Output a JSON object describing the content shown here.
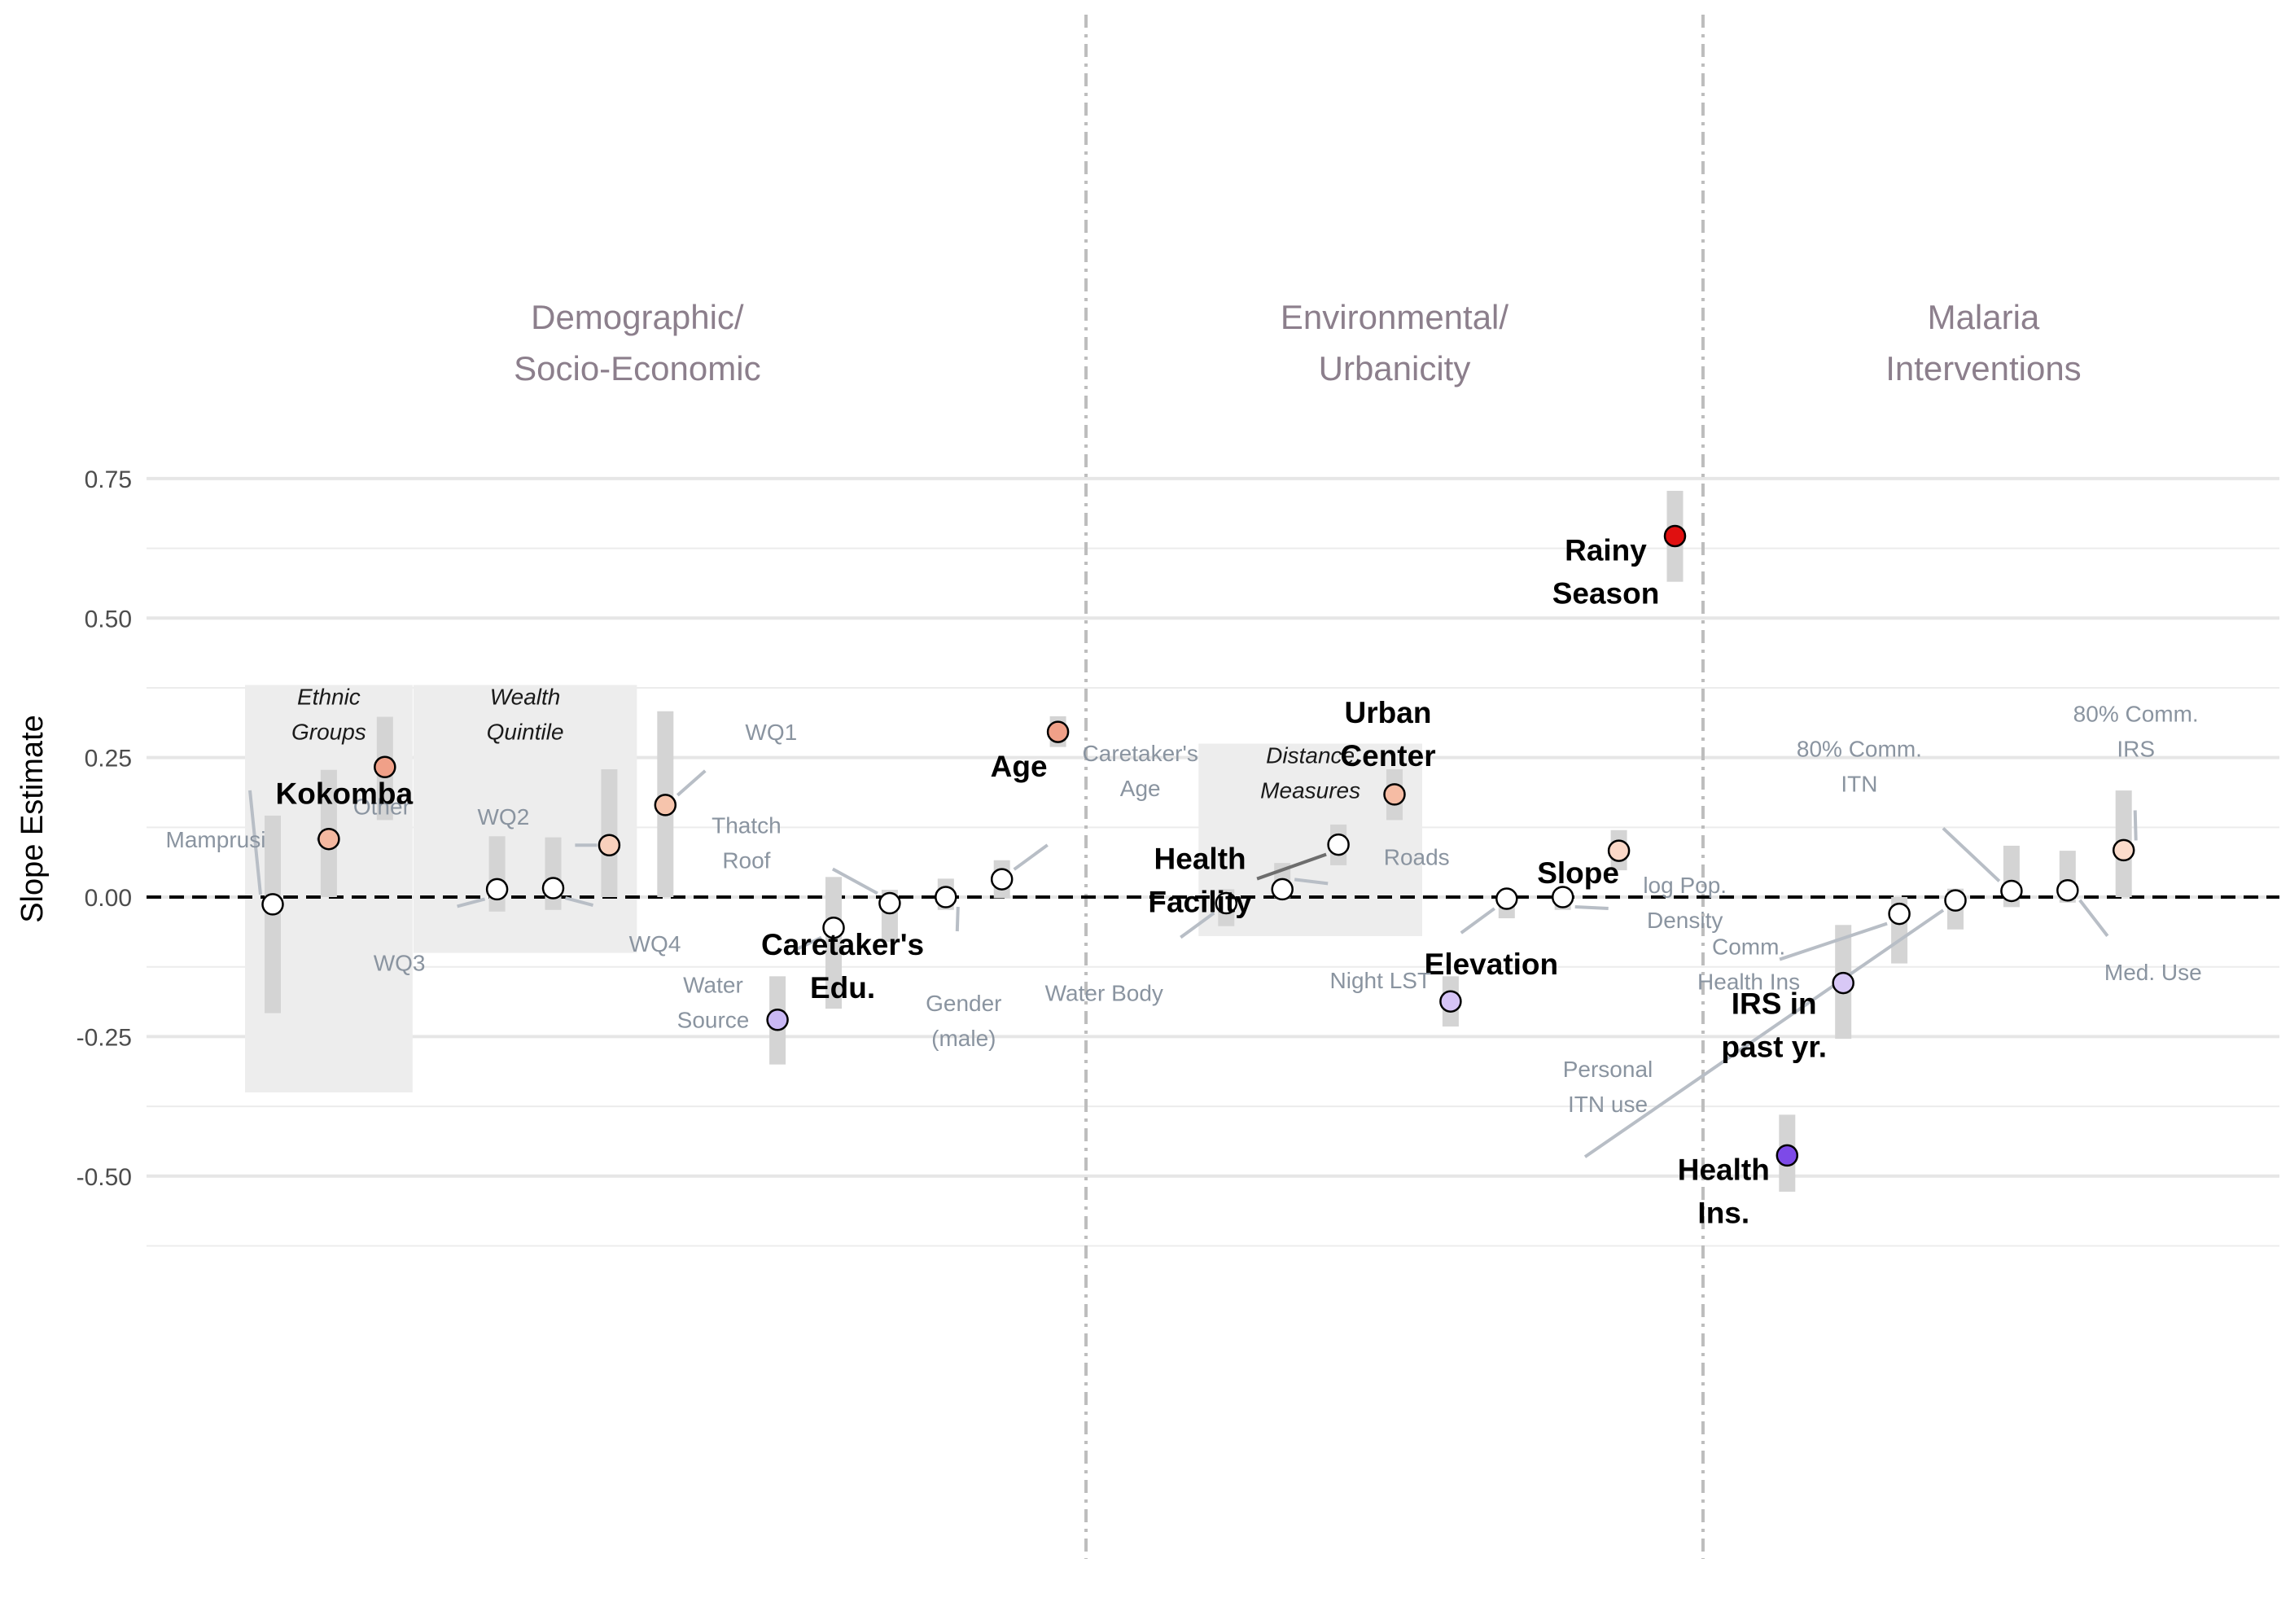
{
  "chart_data": {
    "type": "scatter",
    "title": "",
    "xlabel": "",
    "ylabel": "Slope Estimate",
    "ylim": [
      -0.57,
      0.79
    ],
    "y_ticks": [
      "-0.50",
      "-0.25",
      "0.00",
      "0.25",
      "0.50",
      "0.75"
    ],
    "y_tick_values": [
      -0.5,
      -0.25,
      0.0,
      0.25,
      0.5,
      0.75
    ],
    "grid": true,
    "reference_line": 0,
    "group_labels": [
      {
        "lines": [
          "Demographic/",
          "Socio-Economic"
        ],
        "span": [
          1,
          14
        ]
      },
      {
        "lines": [
          "Environmental/",
          "Urbanicity"
        ],
        "span": [
          17,
          25
        ]
      },
      {
        "lines": [
          "Malaria",
          "Interventions"
        ],
        "span": [
          29,
          34
        ]
      }
    ],
    "separators_after": [
      15.5,
      26.5
    ],
    "subgroups": [
      {
        "lines": [
          "Ethnic",
          "Groups"
        ],
        "x_range": [
          1,
          3
        ],
        "y_range": [
          -0.35,
          0.38
        ]
      },
      {
        "lines": [
          "Wealth",
          "Quintile"
        ],
        "x_range": [
          4,
          7
        ],
        "y_range": [
          -0.1,
          0.38
        ]
      },
      {
        "lines": [
          "Distance",
          "Measures"
        ],
        "x_range": [
          18,
          21
        ],
        "y_range": [
          -0.07,
          0.275
        ]
      }
    ],
    "points": [
      {
        "label": "Mamprusi",
        "x": 1,
        "y": -0.013,
        "lo": -0.208,
        "hi": 0.146,
        "style": "grey",
        "fill": "#ffffff"
      },
      {
        "label": "Other",
        "x": 2,
        "y": 0.104,
        "lo": 0.0,
        "hi": 0.228,
        "style": "grey",
        "fill": "#f4b8a0"
      },
      {
        "label": "Kokomba",
        "x": 3,
        "y": 0.233,
        "lo": 0.138,
        "hi": 0.323,
        "style": "bold",
        "fill": "#f0a088"
      },
      {
        "label": "WQ3",
        "x": 5,
        "y": 0.014,
        "lo": -0.026,
        "hi": 0.109,
        "style": "grey",
        "fill": "#ffffff"
      },
      {
        "label": "WQ4",
        "x": 6,
        "y": 0.016,
        "lo": -0.023,
        "hi": 0.107,
        "style": "grey",
        "fill": "#ffffff"
      },
      {
        "label": "WQ2",
        "x": 7,
        "y": 0.093,
        "lo": 0.0,
        "hi": 0.229,
        "style": "grey",
        "fill": "#f8d0bc"
      },
      {
        "label": "WQ1",
        "x": 8,
        "y": 0.165,
        "lo": 0.0,
        "hi": 0.333,
        "style": "grey",
        "fill": "#f6c4ac"
      },
      {
        "label": "Caretaker's Edu.",
        "x": 10,
        "y": -0.22,
        "lo": -0.3,
        "hi": -0.142,
        "style": "bold",
        "fill": "#c9b8f4"
      },
      {
        "label": "Water Source",
        "x": 11,
        "y": -0.055,
        "lo": -0.2,
        "hi": 0.036,
        "style": "grey",
        "fill": "#ffffff"
      },
      {
        "label": "Thatch Roof",
        "x": 12,
        "y": -0.011,
        "lo": -0.08,
        "hi": 0.013,
        "style": "grey",
        "fill": "#ffffff"
      },
      {
        "label": "Gender (male)",
        "x": 13,
        "y": 0.0,
        "lo": -0.023,
        "hi": 0.033,
        "style": "grey",
        "fill": "#ffffff"
      },
      {
        "label": "Caretaker's Age",
        "x": 14,
        "y": 0.032,
        "lo": -0.002,
        "hi": 0.066,
        "style": "grey",
        "fill": "#ffffff"
      },
      {
        "label": "Age",
        "x": 15,
        "y": 0.296,
        "lo": 0.269,
        "hi": 0.324,
        "style": "bold",
        "fill": "#f0a088"
      },
      {
        "label": "Water Body",
        "x": 18,
        "y": -0.011,
        "lo": -0.052,
        "hi": 0.014,
        "style": "grey",
        "fill": "#ffffff"
      },
      {
        "label": "Roads",
        "x": 19,
        "y": 0.014,
        "lo": -0.002,
        "hi": 0.061,
        "style": "grey",
        "fill": "#ffffff"
      },
      {
        "label": "Health Facility",
        "x": 20,
        "y": 0.094,
        "lo": 0.057,
        "hi": 0.13,
        "style": "bold",
        "fill": "#ffffff"
      },
      {
        "label": "Urban Center",
        "x": 21,
        "y": 0.184,
        "lo": 0.138,
        "hi": 0.229,
        "style": "bold",
        "fill": "#f6bca4"
      },
      {
        "label": "Elevation",
        "x": 22,
        "y": -0.187,
        "lo": -0.232,
        "hi": -0.142,
        "style": "bold",
        "fill": "#d6c4f6"
      },
      {
        "label": "Night LST",
        "x": 23,
        "y": -0.003,
        "lo": -0.038,
        "hi": 0.0,
        "style": "grey",
        "fill": "#ffffff"
      },
      {
        "label": "log Pop. Density",
        "x": 24,
        "y": 0.0,
        "lo": -0.023,
        "hi": 0.012,
        "style": "grey",
        "fill": "#ffffff"
      },
      {
        "label": "Slope",
        "x": 25,
        "y": 0.083,
        "lo": 0.048,
        "hi": 0.12,
        "style": "bold",
        "fill": "#fbd8c8"
      },
      {
        "label": "Rainy Season",
        "x": 26,
        "y": 0.647,
        "lo": 0.565,
        "hi": 0.728,
        "style": "bold",
        "fill": "#e01010"
      },
      {
        "label": "Health Ins.",
        "x": 28,
        "y": -0.463,
        "lo": -0.528,
        "hi": -0.39,
        "style": "bold",
        "fill": "#7d4ae8"
      },
      {
        "label": "IRS in past yr.",
        "x": 29,
        "y": -0.154,
        "lo": -0.254,
        "hi": -0.05,
        "style": "bold",
        "fill": "#d8c8f6"
      },
      {
        "label": "Comm. Health Ins",
        "x": 30,
        "y": -0.03,
        "lo": -0.119,
        "hi": 0.0,
        "style": "grey",
        "fill": "#ffffff"
      },
      {
        "label": "Personal ITN use",
        "x": 31,
        "y": -0.006,
        "lo": -0.058,
        "hi": 0.015,
        "style": "grey",
        "fill": "#ffffff"
      },
      {
        "label": "80% Comm. ITN",
        "x": 32,
        "y": 0.011,
        "lo": -0.018,
        "hi": 0.092,
        "style": "grey",
        "fill": "#ffffff"
      },
      {
        "label": "Med. Use",
        "x": 33,
        "y": 0.012,
        "lo": -0.01,
        "hi": 0.083,
        "style": "grey",
        "fill": "#ffffff"
      },
      {
        "label": "80% Comm. IRS",
        "x": 34,
        "y": 0.084,
        "lo": 0.0,
        "hi": 0.191,
        "style": "grey",
        "fill": "#fbdccc"
      }
    ]
  }
}
